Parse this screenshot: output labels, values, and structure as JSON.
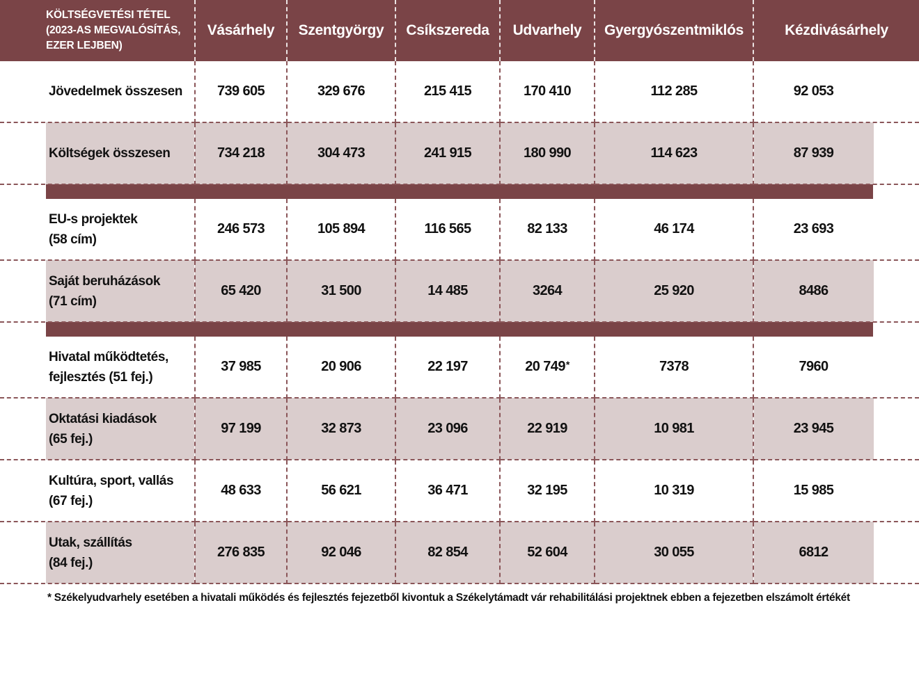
{
  "header": {
    "first_col_lines": [
      "KÖLTSÉGVETÉSI TÉTEL",
      "(2023-AS MEGVALÓSÍTÁS,",
      "EZER LEJBEN)"
    ],
    "cities": [
      "Vásárhely",
      "Szentgyörgy",
      "Csíkszereda",
      "Udvarhely",
      "Gyergyószentmiklós",
      "Kézdivásárhely"
    ]
  },
  "rows": [
    {
      "label_lines": [
        "Jövedelmek összesen"
      ],
      "values": [
        "739 605",
        "329 676",
        "215 415",
        "170 410",
        "112 285",
        "92 053"
      ]
    },
    {
      "label_lines": [
        "Költségek összesen"
      ],
      "values": [
        "734 218",
        "304 473",
        "241 915",
        "180 990",
        "114 623",
        "87 939"
      ]
    },
    {
      "label_lines": [
        "EU-s projektek",
        "(58 cím)"
      ],
      "values": [
        "246 573",
        "105 894",
        "116 565",
        "82 133",
        "46 174",
        "23 693"
      ]
    },
    {
      "label_lines": [
        "Saját beruházások",
        "(71 cím)"
      ],
      "values": [
        "65 420",
        "31 500",
        "14 485",
        "3264",
        "25 920",
        "8486"
      ]
    },
    {
      "label_lines": [
        "Hivatal működtetés,",
        "fejlesztés (51 fej.)"
      ],
      "values": [
        "37 985",
        "20 906",
        "22 197",
        "20 749",
        "7378",
        "7960"
      ]
    },
    {
      "label_lines": [
        "Oktatási kiadások",
        "(65 fej.)"
      ],
      "values": [
        "97 199",
        "32 873",
        "23 096",
        "22 919",
        "10 981",
        "23 945"
      ]
    },
    {
      "label_lines": [
        "Kultúra, sport, vallás",
        "(67 fej.)"
      ],
      "values": [
        "48 633",
        "56 621",
        "36 471",
        "32 195",
        "10 319",
        "15 985"
      ]
    },
    {
      "label_lines": [
        "Utak, szállítás",
        "(84 fej.)"
      ],
      "values": [
        "276 835",
        "92 046",
        "82 854",
        "52 604",
        "30 055",
        "6812"
      ]
    }
  ],
  "asterisk_mark": "*",
  "footnote": "*  Székelyudvarhely esetében a hivatali működés és fejlesztés fejezetből kivontuk a Székelytámadt vár rehabilitálási projektnek ebben a fejezetben elszámolt értékét",
  "colors": {
    "header_bg": "#7a4447",
    "shaded_row": "#dacdcd",
    "separator": "#7a4447"
  }
}
